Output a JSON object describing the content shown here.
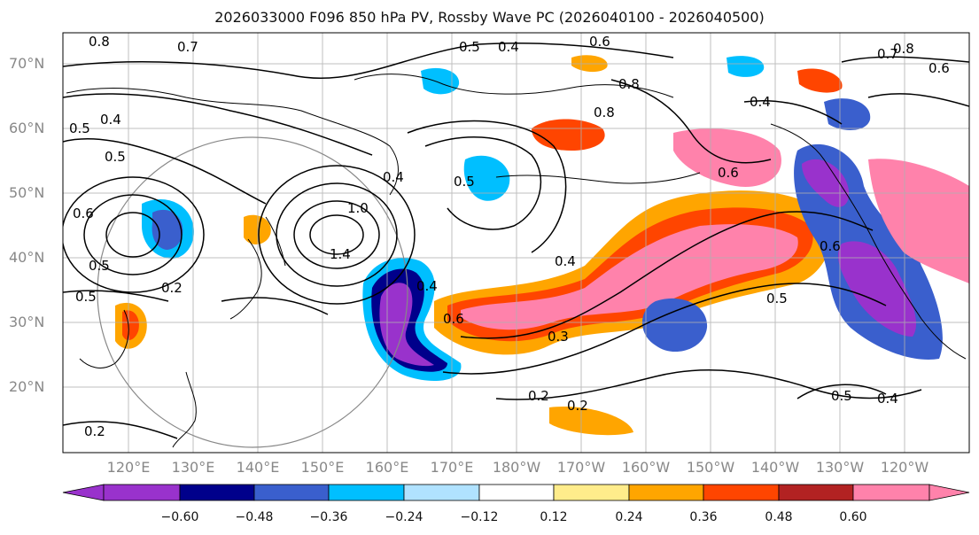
{
  "figure": {
    "title": "2026033000 F096 850 hPa PV, Rossby Wave PC (2026040100 - 2026040500)"
  },
  "map": {
    "lat_labels": [
      "70°N",
      "60°N",
      "50°N",
      "40°N",
      "30°N",
      "20°N"
    ],
    "lon_labels": [
      "120°E",
      "130°E",
      "140°E",
      "150°E",
      "160°E",
      "170°E",
      "180°W",
      "170°W",
      "160°W",
      "150°W",
      "140°W",
      "130°W",
      "120°W"
    ],
    "contour_labels": [
      "0.8",
      "0.7",
      "0.5",
      "0.4",
      "0.6",
      "0.8",
      "0.7",
      "0.6",
      "0.8",
      "0.8",
      "0.4",
      "0.5",
      "0.4",
      "0.5",
      "0.6",
      "0.4",
      "1.0",
      "0.4",
      "1.4",
      "0.5",
      "0.6",
      "0.5",
      "0.2",
      "0.5",
      "0.6",
      "0.4",
      "0.6",
      "0.5",
      "0.3",
      "0.2",
      "0.2",
      "0.5",
      "0.4",
      "0.2"
    ]
  },
  "colorbar": {
    "ticks": [
      "−0.60",
      "−0.48",
      "−0.36",
      "−0.24",
      "−0.12",
      "0.12",
      "0.24",
      "0.36",
      "0.48",
      "0.60"
    ],
    "colors": [
      "#9932cc",
      "#00008b",
      "#3a5fcd",
      "#00bfff",
      "#b0e2ff",
      "#ffffff",
      "#ffec8b",
      "#ffa500",
      "#ff4500",
      "#b22222",
      "#ff82ab"
    ]
  }
}
